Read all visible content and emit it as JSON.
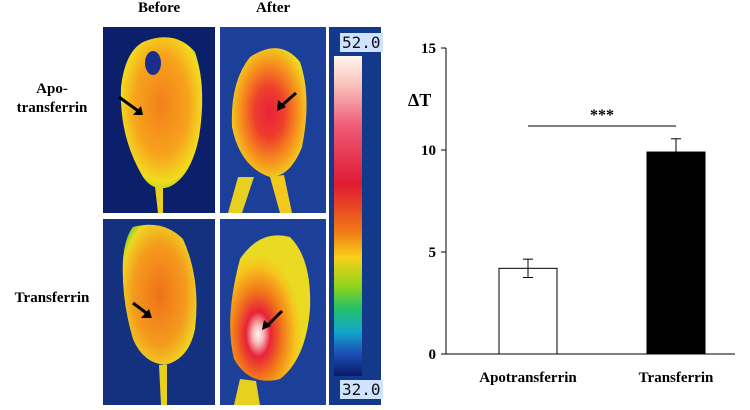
{
  "figure": {
    "col_labels": [
      "Before",
      "After"
    ],
    "row_labels": [
      {
        "line1": "Apo-",
        "line2": "transferrin"
      },
      {
        "line1": "Transferrin",
        "line2": ""
      }
    ],
    "scale": {
      "max": "52.0",
      "min": "32.0"
    }
  },
  "chart_data": {
    "type": "bar",
    "categories": [
      "Apotransferrin",
      "Transferrin"
    ],
    "values": [
      4.2,
      9.9
    ],
    "errors": [
      0.45,
      0.65
    ],
    "ylabel": "ΔT",
    "ylim": [
      0,
      15
    ],
    "yticks": [
      0,
      5,
      10,
      15
    ],
    "bar_colors": [
      "#ffffff",
      "#000000"
    ],
    "significance": "***",
    "grid": false
  }
}
